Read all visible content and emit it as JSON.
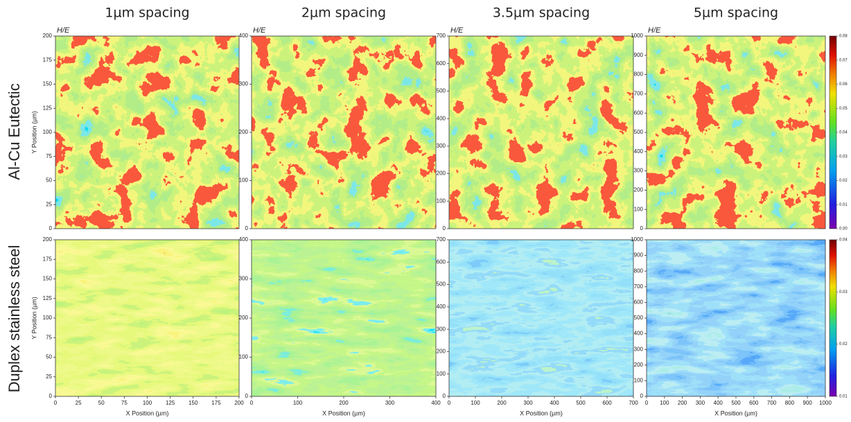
{
  "column_titles": [
    "1µm spacing",
    "2µm spacing",
    "3.5µm spacing",
    "5µm spacing"
  ],
  "row_labels": [
    "Al-Cu Eutectic",
    "Duplex stainless steel"
  ],
  "chart_data": [
    {
      "type": "heatmap",
      "label": "H/E",
      "ylabel": "Y Position (µm)",
      "xlim": [
        0,
        200
      ],
      "ylim": [
        0,
        200
      ],
      "yticks": [
        0,
        25,
        50,
        75,
        100,
        125,
        150,
        175,
        200
      ]
    },
    {
      "type": "heatmap",
      "label": "H/E",
      "xlim": [
        0,
        400
      ],
      "ylim": [
        0,
        400
      ],
      "yticks": [
        0,
        100,
        200,
        300,
        400
      ]
    },
    {
      "type": "heatmap",
      "label": "H/E",
      "xlim": [
        0,
        700
      ],
      "ylim": [
        0,
        700
      ],
      "yticks": [
        0,
        100,
        200,
        300,
        400,
        500,
        600,
        700
      ]
    },
    {
      "type": "heatmap",
      "label": "H/E",
      "xlim": [
        0,
        1000
      ],
      "ylim": [
        0,
        1000
      ],
      "yticks": [
        0,
        100,
        200,
        300,
        400,
        500,
        600,
        700,
        800,
        900,
        1000
      ],
      "zlim": [
        0,
        0.08
      ],
      "zticks": [
        {
          "value": 0,
          "label": "0.00"
        },
        0.01,
        0.02,
        0.03,
        0.04,
        0.05,
        0.06,
        0.07,
        0.08
      ]
    },
    {
      "type": "heatmap",
      "ylabel": "Y Position (µm)",
      "xlabel": "X Position (µm)",
      "xlim": [
        0,
        200
      ],
      "ylim": [
        0,
        200
      ],
      "xticks": [
        0,
        25,
        50,
        75,
        100,
        125,
        150,
        175,
        200
      ],
      "yticks": [
        0,
        25,
        50,
        75,
        100,
        125,
        150,
        175,
        200
      ]
    },
    {
      "type": "heatmap",
      "xlabel": "X Position (µm)",
      "xlim": [
        0,
        400
      ],
      "ylim": [
        0,
        400
      ],
      "xticks": [
        0,
        100,
        200,
        300,
        400
      ],
      "yticks": [
        0,
        100,
        200,
        300,
        400
      ]
    },
    {
      "type": "heatmap",
      "xlabel": "X Position (µm)",
      "xlim": [
        0,
        700
      ],
      "ylim": [
        0,
        700
      ],
      "xticks": [
        0,
        100,
        200,
        300,
        400,
        500,
        600,
        700
      ],
      "yticks": [
        0,
        100,
        200,
        300,
        400,
        500,
        600,
        700
      ]
    },
    {
      "type": "heatmap",
      "xlabel": "X Position (µm)",
      "xlim": [
        0,
        1000
      ],
      "ylim": [
        0,
        1000
      ],
      "xticks": [
        0,
        100,
        200,
        300,
        400,
        500,
        600,
        700,
        800,
        900,
        1000
      ],
      "yticks": [
        0,
        100,
        200,
        300,
        400,
        500,
        600,
        700,
        800,
        900,
        1000
      ],
      "zlim": [
        0.01,
        0.04
      ],
      "zticks": [
        0.01,
        0.02,
        0.03,
        0.04
      ]
    }
  ]
}
